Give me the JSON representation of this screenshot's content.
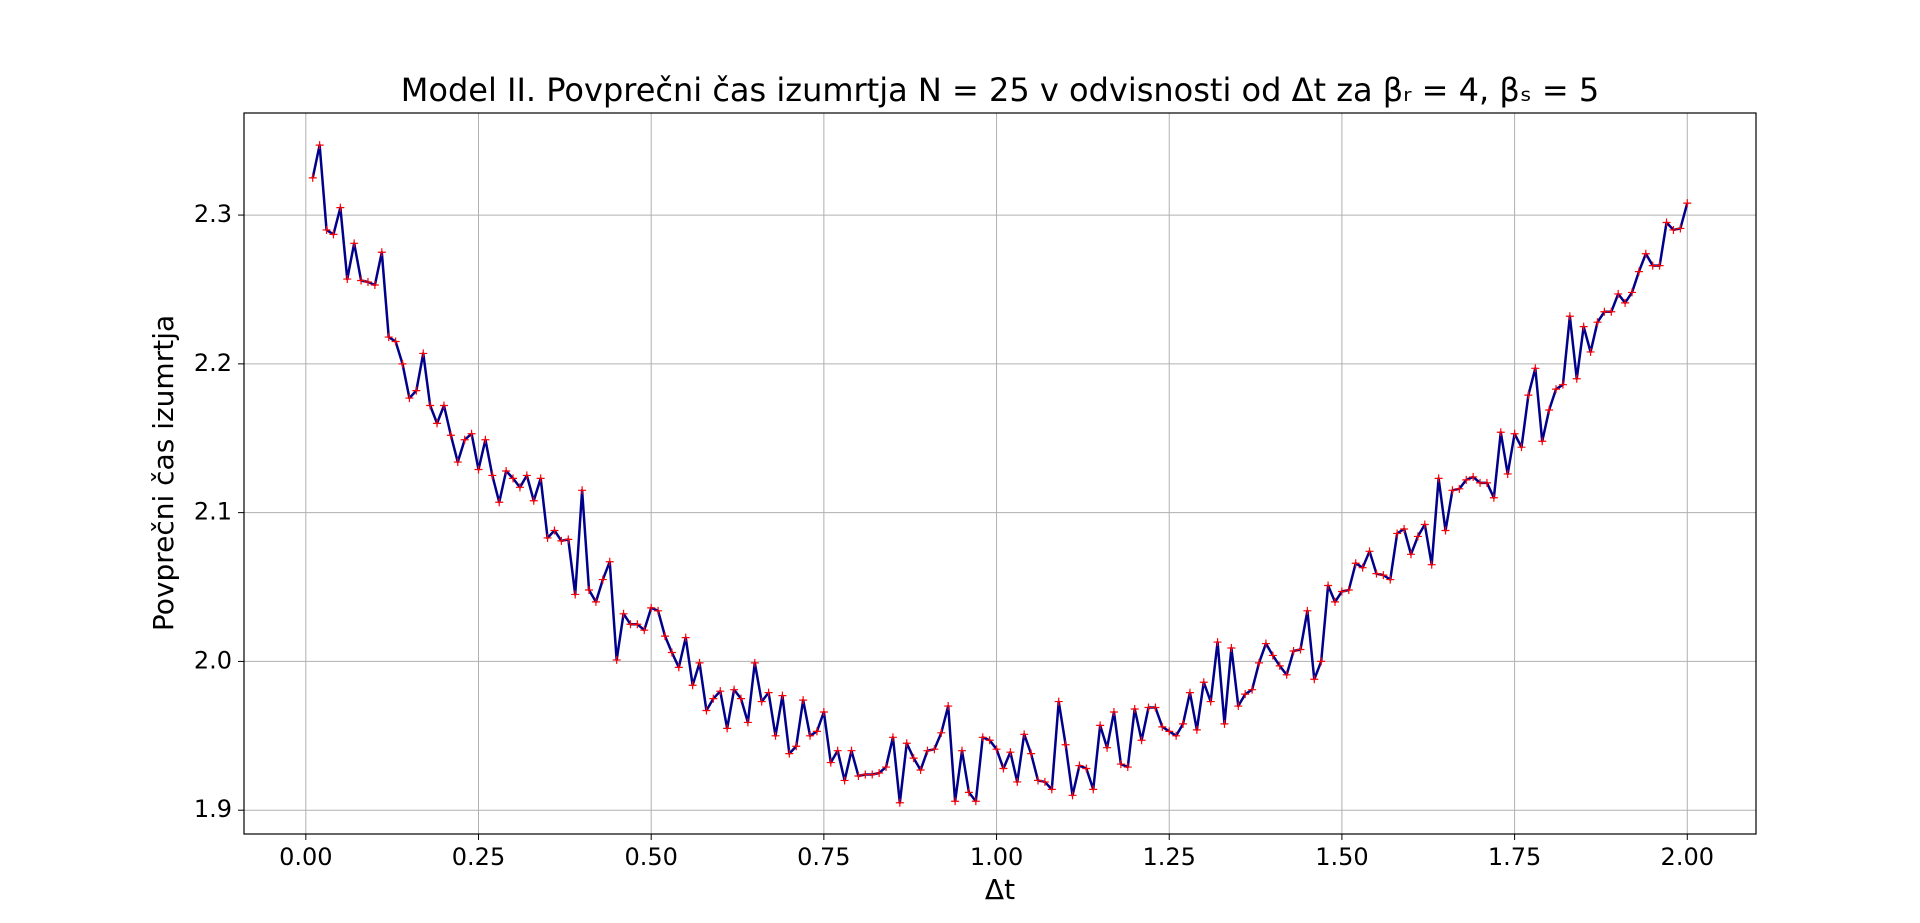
{
  "chart_data": {
    "type": "line",
    "title": "Model II. Povprečni čas izumrtja N = 25 v odvisnosti od Δt za  βᵣ = 4, βₛ = 5",
    "xlabel": "Δt",
    "ylabel": "Povprečni čas izumrtja",
    "x": [
      0.01,
      0.02,
      0.03,
      0.04,
      0.05,
      0.06,
      0.07,
      0.08,
      0.09,
      0.1,
      0.11,
      0.12,
      0.13,
      0.14,
      0.15,
      0.16,
      0.17,
      0.18,
      0.19,
      0.2,
      0.21,
      0.22,
      0.23,
      0.24,
      0.25,
      0.26,
      0.27,
      0.28,
      0.29,
      0.3,
      0.31,
      0.32,
      0.33,
      0.34,
      0.35,
      0.36,
      0.37,
      0.38,
      0.39,
      0.4,
      0.41,
      0.42,
      0.43,
      0.44,
      0.45,
      0.46,
      0.47,
      0.48,
      0.49,
      0.5,
      0.51,
      0.52,
      0.53,
      0.54,
      0.55,
      0.56,
      0.57,
      0.58,
      0.59,
      0.6,
      0.61,
      0.62,
      0.63,
      0.64,
      0.65,
      0.66,
      0.67,
      0.68,
      0.69,
      0.7,
      0.71,
      0.72,
      0.73,
      0.74,
      0.75,
      0.76,
      0.77,
      0.78,
      0.79,
      0.8,
      0.81,
      0.82,
      0.83,
      0.84,
      0.85,
      0.86,
      0.87,
      0.88,
      0.89,
      0.9,
      0.91,
      0.92,
      0.93,
      0.94,
      0.95,
      0.96,
      0.97,
      0.98,
      0.99,
      1.0,
      1.01,
      1.02,
      1.03,
      1.04,
      1.05,
      1.06,
      1.07,
      1.08,
      1.09,
      1.1,
      1.11,
      1.12,
      1.13,
      1.14,
      1.15,
      1.16,
      1.17,
      1.18,
      1.19,
      1.2,
      1.21,
      1.22,
      1.23,
      1.24,
      1.25,
      1.26,
      1.27,
      1.28,
      1.29,
      1.3,
      1.31,
      1.32,
      1.33,
      1.34,
      1.35,
      1.36,
      1.37,
      1.38,
      1.39,
      1.4,
      1.41,
      1.42,
      1.43,
      1.44,
      1.45,
      1.46,
      1.47,
      1.48,
      1.49,
      1.5,
      1.51,
      1.52,
      1.53,
      1.54,
      1.55,
      1.56,
      1.57,
      1.58,
      1.59,
      1.6,
      1.61,
      1.62,
      1.63,
      1.64,
      1.65,
      1.66,
      1.67,
      1.68,
      1.69,
      1.7,
      1.71,
      1.72,
      1.73,
      1.74,
      1.75,
      1.76,
      1.77,
      1.78,
      1.79,
      1.8,
      1.81,
      1.82,
      1.83,
      1.84,
      1.85,
      1.86,
      1.87,
      1.88,
      1.89,
      1.9,
      1.91,
      1.92,
      1.93,
      1.94,
      1.95,
      1.96,
      1.97,
      1.98,
      1.99,
      2.0
    ],
    "series": [
      {
        "color": "#00008b",
        "marker_color": "#ff0000",
        "values": [
          2.325,
          2.347,
          2.29,
          2.287,
          2.305,
          2.257,
          2.281,
          2.256,
          2.255,
          2.253,
          2.275,
          2.218,
          2.215,
          2.2,
          2.177,
          2.182,
          2.207,
          2.172,
          2.16,
          2.172,
          2.152,
          2.134,
          2.149,
          2.153,
          2.129,
          2.149,
          2.125,
          2.107,
          2.128,
          2.123,
          2.117,
          2.125,
          2.108,
          2.123,
          2.083,
          2.088,
          2.081,
          2.082,
          2.045,
          2.115,
          2.048,
          2.04,
          2.055,
          2.067,
          2.001,
          2.032,
          2.025,
          2.025,
          2.021,
          2.036,
          2.034,
          2.017,
          2.006,
          1.996,
          2.016,
          1.984,
          1.999,
          1.967,
          1.975,
          1.98,
          1.955,
          1.981,
          1.975,
          1.959,
          1.999,
          1.973,
          1.979,
          1.95,
          1.977,
          1.938,
          1.943,
          1.974,
          1.95,
          1.953,
          1.966,
          1.932,
          1.94,
          1.92,
          1.94,
          1.923,
          1.924,
          1.924,
          1.925,
          1.929,
          1.949,
          1.905,
          1.945,
          1.935,
          1.927,
          1.94,
          1.941,
          1.952,
          1.97,
          1.906,
          1.94,
          1.912,
          1.906,
          1.949,
          1.947,
          1.941,
          1.928,
          1.939,
          1.919,
          1.951,
          1.938,
          1.92,
          1.919,
          1.914,
          1.973,
          1.944,
          1.91,
          1.93,
          1.928,
          1.914,
          1.957,
          1.942,
          1.966,
          1.931,
          1.929,
          1.968,
          1.947,
          1.969,
          1.969,
          1.956,
          1.953,
          1.95,
          1.958,
          1.979,
          1.954,
          1.986,
          1.973,
          2.013,
          1.958,
          2.009,
          1.97,
          1.978,
          1.981,
          1.999,
          2.012,
          2.004,
          1.997,
          1.991,
          2.007,
          2.008,
          2.034,
          1.988,
          2.0,
          2.051,
          2.04,
          2.047,
          2.048,
          2.066,
          2.063,
          2.074,
          2.059,
          2.058,
          2.055,
          2.086,
          2.089,
          2.072,
          2.084,
          2.092,
          2.065,
          2.123,
          2.088,
          2.115,
          2.116,
          2.122,
          2.124,
          2.12,
          2.12,
          2.11,
          2.154,
          2.126,
          2.153,
          2.144,
          2.179,
          2.197,
          2.148,
          2.169,
          2.183,
          2.186,
          2.232,
          2.19,
          2.225,
          2.208,
          2.228,
          2.235,
          2.235,
          2.247,
          2.241,
          2.248,
          2.262,
          2.274,
          2.266,
          2.266,
          2.295,
          2.29,
          2.291,
          2.308
        ]
      }
    ],
    "xlim": [
      -0.0895,
      2.0995
    ],
    "ylim": [
      1.884,
      2.3686
    ],
    "xticks": [
      {
        "value": 0,
        "label": "0.00"
      },
      {
        "value": 0.25,
        "label": "0.25"
      },
      {
        "value": 0.5,
        "label": "0.50"
      },
      {
        "value": 0.75,
        "label": "0.75"
      },
      {
        "value": 1,
        "label": "1.00"
      },
      {
        "value": 1.25,
        "label": "1.25"
      },
      {
        "value": 1.5,
        "label": "1.50"
      },
      {
        "value": 1.75,
        "label": "1.75"
      },
      {
        "value": 2,
        "label": "2.00"
      }
    ],
    "yticks": [
      1.9,
      {
        "value": 2,
        "label": "2.0"
      },
      2.1,
      2.2,
      2.3
    ],
    "grid": true
  }
}
